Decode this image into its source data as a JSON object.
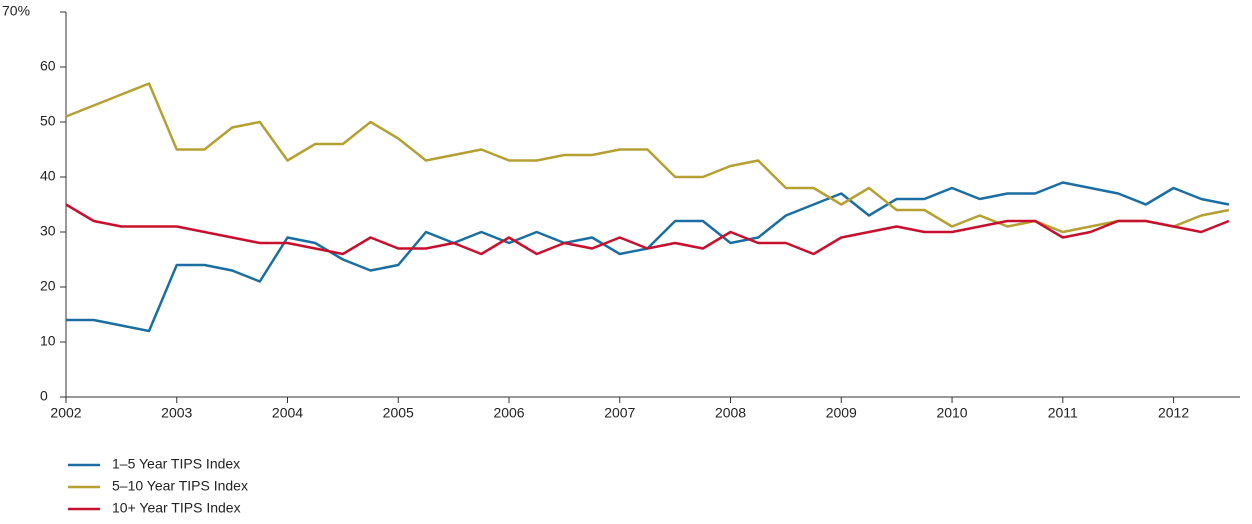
{
  "chart_data": {
    "type": "line",
    "x": [
      2002,
      2002.25,
      2002.5,
      2002.75,
      2003,
      2003.25,
      2003.5,
      2003.75,
      2004,
      2004.25,
      2004.5,
      2004.75,
      2005,
      2005.25,
      2005.5,
      2005.75,
      2006,
      2006.25,
      2006.5,
      2006.75,
      2007,
      2007.25,
      2007.5,
      2007.75,
      2008,
      2008.25,
      2008.5,
      2008.75,
      2009,
      2009.25,
      2009.5,
      2009.75,
      2010,
      2010.25,
      2010.5,
      2010.75,
      2011,
      2011.25,
      2011.5,
      2011.75,
      2012,
      2012.25,
      2012.5
    ],
    "series": [
      {
        "name": "1–5 Year TIPS Index",
        "color": "#1a6ea1",
        "values": [
          14,
          14,
          13,
          12,
          24,
          24,
          23,
          21,
          29,
          28,
          25,
          23,
          24,
          30,
          28,
          30,
          28,
          30,
          28,
          29,
          26,
          27,
          32,
          32,
          28,
          29,
          33,
          35,
          37,
          33,
          36,
          36,
          38,
          36,
          37,
          37,
          39,
          38,
          37,
          35,
          38,
          36,
          35
        ]
      },
      {
        "name": "5–10 Year TIPS Index",
        "color": "#b5a032",
        "values": [
          51,
          53,
          55,
          57,
          45,
          45,
          49,
          50,
          43,
          46,
          46,
          50,
          47,
          43,
          44,
          45,
          43,
          43,
          44,
          44,
          45,
          45,
          40,
          40,
          42,
          43,
          38,
          38,
          35,
          38,
          34,
          34,
          31,
          33,
          31,
          32,
          30,
          31,
          32,
          32,
          31,
          33,
          34
        ]
      },
      {
        "name": "10+ Year TIPS Index",
        "color": "#c8102e",
        "values": [
          35,
          32,
          31,
          31,
          31,
          30,
          29,
          28,
          28,
          27,
          26,
          29,
          27,
          27,
          28,
          26,
          29,
          26,
          28,
          27,
          29,
          27,
          28,
          27,
          30,
          28,
          28,
          26,
          29,
          30,
          31,
          30,
          30,
          31,
          32,
          32,
          29,
          30,
          32,
          32,
          31,
          30,
          32
        ]
      }
    ],
    "xlim": [
      2002,
      2012.6
    ],
    "xticks": [
      2002,
      2003,
      2004,
      2005,
      2006,
      2007,
      2008,
      2009,
      2010,
      2011,
      2012
    ],
    "ylim": [
      0,
      70
    ],
    "yticks": [
      0,
      10,
      20,
      30,
      40,
      50,
      60,
      {
        "value": 70,
        "label": "70%"
      }
    ],
    "grid": false,
    "legend": "bottom-left"
  }
}
